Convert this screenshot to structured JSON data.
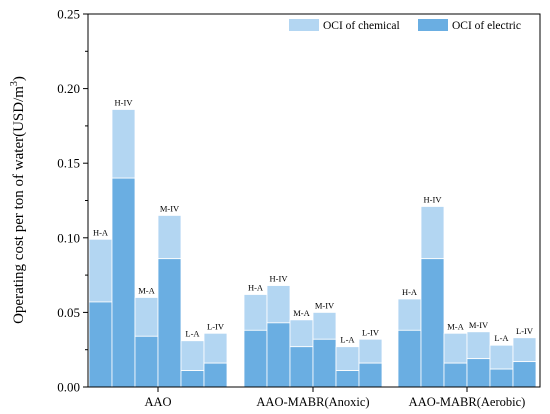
{
  "chart_data": {
    "type": "bar",
    "stacked": true,
    "ylabel": "Operating cost per ton of water(USD/m³)",
    "ylabel_main": "Operating cost per ton of water(USD/m",
    "ylabel_sup": "3",
    "ylabel_close": ")",
    "xlabel": "",
    "ylim": [
      0,
      0.25
    ],
    "yticks": [
      "0.00",
      "0.05",
      "0.10",
      "0.15",
      "0.20",
      "0.25"
    ],
    "grid": false,
    "legend_position": "top-right",
    "groups": [
      {
        "name": "AAO",
        "bars": [
          {
            "label": "H-A",
            "electric": 0.057,
            "chemical": 0.042
          },
          {
            "label": "H-IV",
            "electric": 0.14,
            "chemical": 0.046
          },
          {
            "label": "M-A",
            "electric": 0.034,
            "chemical": 0.026
          },
          {
            "label": "M-IV",
            "electric": 0.086,
            "chemical": 0.029
          },
          {
            "label": "L-A",
            "electric": 0.011,
            "chemical": 0.02
          },
          {
            "label": "L-IV",
            "electric": 0.016,
            "chemical": 0.02
          }
        ]
      },
      {
        "name": "AAO-MABR(Anoxic)",
        "bars": [
          {
            "label": "H-A",
            "electric": 0.038,
            "chemical": 0.024
          },
          {
            "label": "H-IV",
            "electric": 0.043,
            "chemical": 0.025
          },
          {
            "label": "M-A",
            "electric": 0.027,
            "chemical": 0.018
          },
          {
            "label": "M-IV",
            "electric": 0.032,
            "chemical": 0.018
          },
          {
            "label": "L-A",
            "electric": 0.011,
            "chemical": 0.016
          },
          {
            "label": "L-IV",
            "electric": 0.016,
            "chemical": 0.016
          }
        ]
      },
      {
        "name": "AAO-MABR(Aerobic)",
        "bars": [
          {
            "label": "H-A",
            "electric": 0.038,
            "chemical": 0.021
          },
          {
            "label": "H-IV",
            "electric": 0.086,
            "chemical": 0.035
          },
          {
            "label": "M-A",
            "electric": 0.016,
            "chemical": 0.02
          },
          {
            "label": "M-IV",
            "electric": 0.019,
            "chemical": 0.018
          },
          {
            "label": "L-A",
            "electric": 0.012,
            "chemical": 0.016
          },
          {
            "label": "L-IV",
            "electric": 0.017,
            "chemical": 0.016
          }
        ]
      }
    ],
    "series": [
      {
        "name": "OCI of chemical",
        "key": "chemical",
        "color": "#b3d6f2"
      },
      {
        "name": "OCI of electric",
        "key": "electric",
        "color": "#6aaee2"
      }
    ]
  }
}
